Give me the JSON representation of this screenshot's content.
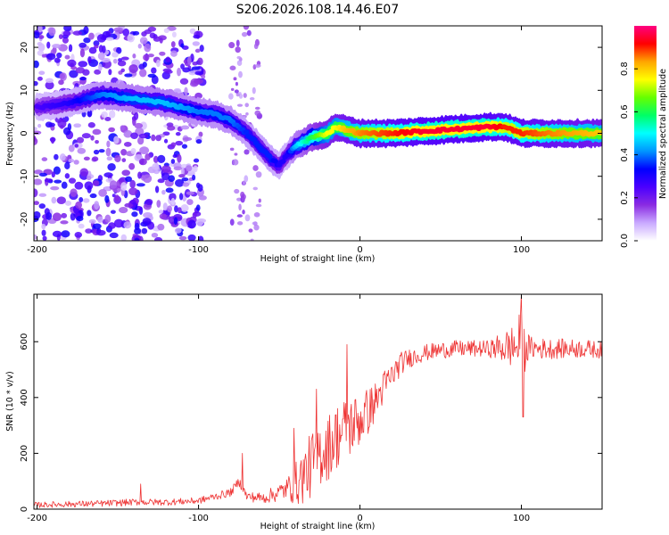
{
  "title": "S206.2026.108.14.46.E07",
  "chart_data": [
    {
      "type": "heatmap",
      "name": "spectrogram",
      "xlabel": "Height of straight line (km)",
      "ylabel": "Frequency (Hz)",
      "xlim": [
        -202,
        150
      ],
      "ylim": [
        -25,
        25
      ],
      "xticks": [
        -200,
        -100,
        0,
        100
      ],
      "yticks": [
        -20,
        -10,
        0,
        10,
        20
      ],
      "colorbar": {
        "label": "Normalized spectral amplitude",
        "range": [
          0,
          1
        ],
        "ticks": [
          "0.0",
          "0.2",
          "0.4",
          "0.6",
          "0.8"
        ],
        "tick_values": [
          0.0,
          0.2,
          0.4,
          0.6,
          0.8
        ],
        "colors": [
          "#ffffff",
          "#c9a9ff",
          "#8a2be2",
          "#4b00ff",
          "#0000ff",
          "#0096ff",
          "#00ffff",
          "#00ff66",
          "#66ff00",
          "#ffff00",
          "#ffa500",
          "#ff0000",
          "#ff0080"
        ]
      },
      "ridge": {
        "x": [
          -200,
          -180,
          -160,
          -140,
          -120,
          -100,
          -90,
          -80,
          -70,
          -60,
          -55,
          -50,
          -45,
          -40,
          -30,
          -20,
          -15,
          -10,
          0,
          20,
          40,
          60,
          80,
          90,
          100,
          120,
          150
        ],
        "freq": [
          6,
          7,
          9,
          8,
          7,
          5,
          4.5,
          3,
          0,
          -4,
          -6,
          -7.5,
          -5,
          -3,
          -1,
          0,
          1.5,
          1,
          0,
          0,
          0.5,
          1,
          1.5,
          1.5,
          0,
          0,
          0
        ],
        "amplitude": [
          0.25,
          0.3,
          0.4,
          0.45,
          0.45,
          0.4,
          0.4,
          0.4,
          0.35,
          0.35,
          0.35,
          0.3,
          0.3,
          0.45,
          0.6,
          0.75,
          0.75,
          0.8,
          0.85,
          0.9,
          0.95,
          0.95,
          0.95,
          0.9,
          0.9,
          0.85,
          0.8
        ]
      }
    },
    {
      "type": "line",
      "name": "snr",
      "xlabel": "Height of straight line (km)",
      "ylabel": "SNR (10 * v/v)",
      "xlim": [
        -202,
        150
      ],
      "ylim": [
        0,
        770
      ],
      "xticks": [
        -200,
        -100,
        0,
        100
      ],
      "yticks": [
        0,
        200,
        400,
        600
      ],
      "color": "#ee3333",
      "trend": {
        "x": [
          -202,
          -180,
          -160,
          -140,
          -120,
          -100,
          -90,
          -80,
          -75,
          -70,
          -60,
          -50,
          -40,
          -35,
          -30,
          -25,
          -20,
          -15,
          -10,
          -5,
          0,
          5,
          10,
          15,
          20,
          25,
          30,
          40,
          50,
          60,
          70,
          80,
          90,
          100,
          110,
          120,
          130,
          140,
          150
        ],
        "y": [
          15,
          18,
          20,
          25,
          25,
          30,
          45,
          60,
          100,
          45,
          40,
          60,
          90,
          120,
          160,
          200,
          220,
          260,
          280,
          300,
          320,
          350,
          390,
          440,
          480,
          520,
          540,
          560,
          570,
          575,
          575,
          575,
          580,
          585,
          575,
          575,
          575,
          575,
          570
        ]
      },
      "noise": {
        "x": [
          -202,
          -150,
          -100,
          -80,
          -60,
          -45,
          -40,
          -30,
          -20,
          -10,
          0,
          10,
          20,
          30,
          40,
          80,
          95,
          100,
          105,
          150
        ],
        "amplitude": [
          10,
          12,
          12,
          15,
          20,
          40,
          80,
          120,
          120,
          120,
          100,
          70,
          50,
          35,
          30,
          30,
          80,
          130,
          40,
          30
        ]
      },
      "spikes": [
        {
          "x": -136,
          "y": 90
        },
        {
          "x": -73,
          "y": 200
        },
        {
          "x": -41,
          "y": 290
        },
        {
          "x": -27,
          "y": 430
        },
        {
          "x": -8,
          "y": 590
        },
        {
          "x": 100,
          "y": 770
        },
        {
          "x": 101,
          "y": 330
        }
      ]
    }
  ]
}
